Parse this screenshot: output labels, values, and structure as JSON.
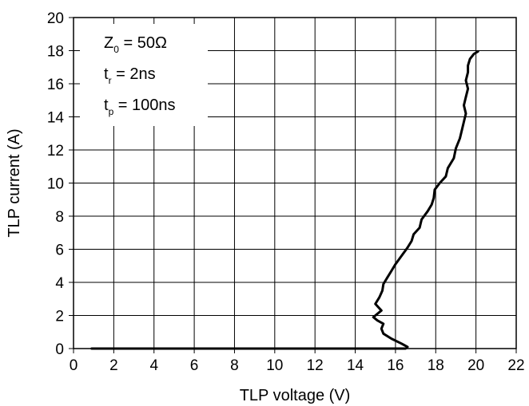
{
  "chart_data": {
    "type": "line",
    "title": "",
    "xlabel": "TLP voltage (V)",
    "ylabel": "TLP current (A)",
    "xlim": [
      0,
      22
    ],
    "ylim": [
      0,
      20
    ],
    "xticks": [
      0,
      2,
      4,
      6,
      8,
      10,
      12,
      14,
      16,
      18,
      20,
      22
    ],
    "yticks": [
      0,
      2,
      4,
      6,
      8,
      10,
      12,
      14,
      16,
      18,
      20
    ],
    "grid": true,
    "legend": {
      "placement": "top-left",
      "entries": [
        {
          "main": "Z",
          "sub": "0",
          "rest": " = 50Ω"
        },
        {
          "main": "t",
          "sub": "r",
          "rest": " = 2ns"
        },
        {
          "main": "t",
          "sub": "p",
          "rest": " = 100ns"
        }
      ]
    },
    "series": [
      {
        "color": "#000000",
        "x": [
          0.9,
          16.5,
          16.6,
          16.3,
          15.8,
          15.4,
          15.3,
          15.4,
          15.1,
          14.9,
          15.3,
          15.0,
          15.2,
          15.35,
          15.4,
          15.6,
          15.8,
          16.0,
          16.3,
          16.6,
          16.8,
          16.9,
          17.2,
          17.3,
          17.6,
          17.8,
          17.9,
          17.95,
          18.2,
          18.5,
          18.6,
          18.9,
          19.0,
          19.2,
          19.3,
          19.4,
          19.5,
          19.4,
          19.5,
          19.6,
          19.5,
          19.6,
          19.6,
          19.7,
          19.9,
          20.1
        ],
        "y": [
          0.0,
          0.0,
          0.1,
          0.3,
          0.6,
          0.9,
          1.2,
          1.5,
          1.7,
          1.9,
          2.3,
          2.7,
          3.1,
          3.5,
          3.9,
          4.3,
          4.7,
          5.1,
          5.6,
          6.1,
          6.5,
          6.9,
          7.3,
          7.8,
          8.3,
          8.7,
          9.1,
          9.6,
          10.0,
          10.4,
          10.9,
          11.5,
          12.1,
          12.7,
          13.2,
          13.7,
          14.2,
          14.7,
          15.2,
          15.7,
          16.2,
          16.7,
          17.1,
          17.5,
          17.8,
          17.95
        ]
      }
    ]
  }
}
